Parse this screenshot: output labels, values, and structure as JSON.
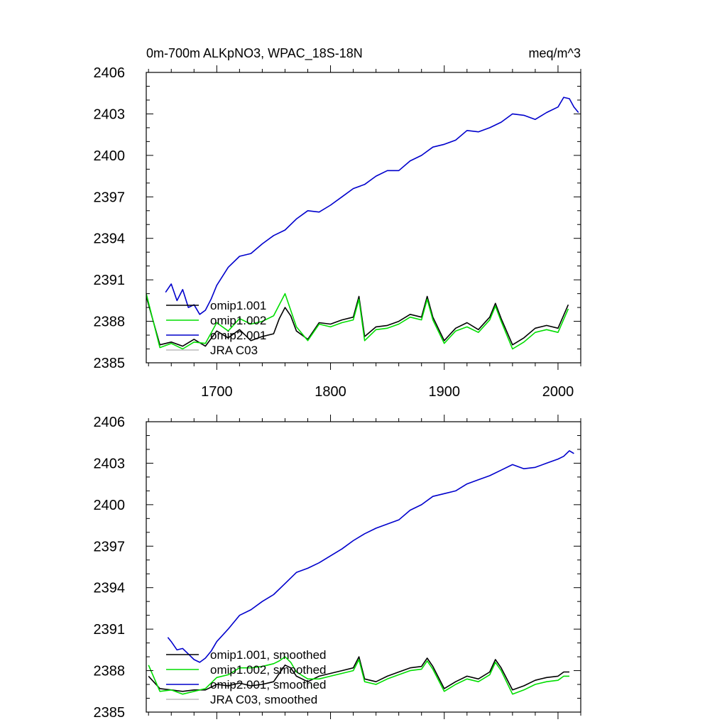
{
  "chart_data": [
    {
      "type": "line",
      "title": "0m-700m ALKpNO3, WPAC_18S-18N",
      "units": "meq/m^3",
      "xlim": [
        1638,
        2020
      ],
      "ylim": [
        2385,
        2406
      ],
      "x_ticks": [
        "1700",
        "1800",
        "1900",
        "2000"
      ],
      "y_ticks": [
        "2385",
        "2388",
        "2391",
        "2394",
        "2397",
        "2400",
        "2403",
        "2406"
      ],
      "legend_position": "lower-left",
      "series": [
        {
          "name": "omip1.001",
          "color": "#000000",
          "x": [
            1638,
            1650,
            1660,
            1670,
            1680,
            1690,
            1700,
            1710,
            1720,
            1730,
            1740,
            1750,
            1755,
            1760,
            1765,
            1770,
            1780,
            1790,
            1800,
            1810,
            1820,
            1825,
            1830,
            1840,
            1850,
            1860,
            1870,
            1880,
            1885,
            1890,
            1900,
            1910,
            1920,
            1930,
            1940,
            1945,
            1950,
            1960,
            1970,
            1980,
            1990,
            2000,
            2009
          ],
          "y": [
            2389.8,
            2386.3,
            2386.5,
            2386.2,
            2386.7,
            2386.2,
            2387.3,
            2386.8,
            2387.4,
            2386.6,
            2386.9,
            2387.1,
            2388.2,
            2389.0,
            2388.4,
            2387.3,
            2386.7,
            2387.9,
            2387.8,
            2388.1,
            2388.3,
            2389.8,
            2386.9,
            2387.6,
            2387.7,
            2388.0,
            2388.5,
            2388.3,
            2389.8,
            2388.3,
            2386.6,
            2387.5,
            2387.9,
            2387.4,
            2388.3,
            2389.3,
            2388.2,
            2386.3,
            2386.8,
            2387.5,
            2387.7,
            2387.5,
            2389.2
          ]
        },
        {
          "name": "omip1.002",
          "color": "#00dd00",
          "x": [
            1638,
            1650,
            1660,
            1670,
            1680,
            1690,
            1700,
            1710,
            1720,
            1730,
            1740,
            1750,
            1755,
            1760,
            1765,
            1770,
            1780,
            1790,
            1800,
            1810,
            1820,
            1825,
            1830,
            1840,
            1850,
            1860,
            1870,
            1880,
            1885,
            1890,
            1900,
            1910,
            1920,
            1930,
            1940,
            1945,
            1950,
            1960,
            1970,
            1980,
            1990,
            2000,
            2009
          ],
          "y": [
            2390.0,
            2386.1,
            2386.4,
            2386.0,
            2386.5,
            2386.4,
            2387.9,
            2387.3,
            2388.2,
            2387.8,
            2388.0,
            2388.4,
            2389.2,
            2390.0,
            2388.8,
            2387.6,
            2386.6,
            2387.8,
            2387.6,
            2387.9,
            2388.1,
            2389.6,
            2386.6,
            2387.4,
            2387.5,
            2387.8,
            2388.3,
            2388.1,
            2389.6,
            2388.1,
            2386.4,
            2387.3,
            2387.6,
            2387.2,
            2388.1,
            2389.1,
            2388.0,
            2386.0,
            2386.5,
            2387.2,
            2387.4,
            2387.2,
            2388.9
          ]
        },
        {
          "name": "omip2.001",
          "color": "#0000cc",
          "x": [
            1655,
            1660,
            1665,
            1670,
            1675,
            1680,
            1685,
            1690,
            1695,
            1700,
            1710,
            1720,
            1730,
            1740,
            1750,
            1760,
            1770,
            1780,
            1790,
            1800,
            1810,
            1820,
            1830,
            1840,
            1850,
            1860,
            1870,
            1880,
            1890,
            1900,
            1910,
            1920,
            1930,
            1940,
            1950,
            1960,
            1970,
            1980,
            1990,
            2000,
            2005,
            2010,
            2014,
            2018
          ],
          "y": [
            2390.1,
            2390.7,
            2389.5,
            2390.3,
            2389.0,
            2389.2,
            2388.5,
            2388.8,
            2389.6,
            2390.6,
            2391.9,
            2392.7,
            2392.9,
            2393.6,
            2394.2,
            2394.6,
            2395.4,
            2396.0,
            2395.9,
            2396.4,
            2397.0,
            2397.6,
            2397.9,
            2398.5,
            2398.9,
            2398.9,
            2399.6,
            2400.0,
            2400.6,
            2400.8,
            2401.1,
            2401.8,
            2401.7,
            2402.0,
            2402.4,
            2403.0,
            2402.9,
            2402.6,
            2403.1,
            2403.5,
            2404.2,
            2404.1,
            2403.5,
            2403.1
          ]
        },
        {
          "name": "JRA C03",
          "color": "#bbbbbb",
          "x": [],
          "y": []
        }
      ]
    },
    {
      "type": "line",
      "title": "",
      "xlim": [
        1638,
        2020
      ],
      "ylim": [
        2385,
        2406
      ],
      "y_ticks": [
        "2385",
        "2388",
        "2391",
        "2394",
        "2397",
        "2400",
        "2403",
        "2406"
      ],
      "legend_position": "lower-left",
      "series": [
        {
          "name": "omip1.001, smoothed",
          "color": "#000000",
          "x": [
            1640,
            1650,
            1660,
            1670,
            1680,
            1690,
            1700,
            1710,
            1720,
            1730,
            1740,
            1750,
            1755,
            1760,
            1765,
            1770,
            1780,
            1790,
            1800,
            1810,
            1820,
            1825,
            1830,
            1840,
            1850,
            1860,
            1870,
            1880,
            1885,
            1890,
            1900,
            1910,
            1920,
            1930,
            1940,
            1945,
            1950,
            1960,
            1970,
            1980,
            1990,
            2000,
            2005,
            2010
          ],
          "y": [
            2387.6,
            2386.7,
            2386.6,
            2386.5,
            2386.6,
            2386.6,
            2387.0,
            2386.9,
            2387.1,
            2386.9,
            2387.0,
            2387.2,
            2387.8,
            2388.4,
            2388.2,
            2387.6,
            2387.2,
            2387.6,
            2387.8,
            2388.0,
            2388.2,
            2389.0,
            2387.4,
            2387.2,
            2387.6,
            2387.9,
            2388.2,
            2388.3,
            2388.9,
            2388.3,
            2386.7,
            2387.2,
            2387.6,
            2387.4,
            2387.9,
            2388.8,
            2388.2,
            2386.6,
            2386.9,
            2387.3,
            2387.5,
            2387.6,
            2387.9,
            2387.9
          ]
        },
        {
          "name": "omip1.002, smoothed",
          "color": "#00dd00",
          "x": [
            1640,
            1650,
            1660,
            1670,
            1680,
            1690,
            1700,
            1710,
            1720,
            1730,
            1740,
            1750,
            1755,
            1760,
            1765,
            1770,
            1780,
            1790,
            1800,
            1810,
            1820,
            1825,
            1830,
            1840,
            1850,
            1860,
            1870,
            1880,
            1885,
            1890,
            1900,
            1910,
            1920,
            1930,
            1940,
            1945,
            1950,
            1960,
            1970,
            1980,
            1990,
            2000,
            2005,
            2010
          ],
          "y": [
            2388.4,
            2386.5,
            2386.6,
            2386.3,
            2386.5,
            2386.7,
            2387.5,
            2387.7,
            2388.2,
            2388.2,
            2388.3,
            2388.5,
            2388.7,
            2389.0,
            2388.6,
            2387.9,
            2387.4,
            2387.4,
            2387.6,
            2387.8,
            2388.0,
            2388.8,
            2387.2,
            2387.0,
            2387.4,
            2387.7,
            2388.0,
            2388.1,
            2388.7,
            2388.1,
            2386.5,
            2387.0,
            2387.4,
            2387.2,
            2387.7,
            2388.6,
            2388.0,
            2386.3,
            2386.6,
            2387.0,
            2387.2,
            2387.3,
            2387.6,
            2387.6
          ]
        },
        {
          "name": "omip2.001, smoothed",
          "color": "#0000cc",
          "x": [
            1657,
            1660,
            1665,
            1670,
            1675,
            1680,
            1685,
            1690,
            1695,
            1700,
            1710,
            1720,
            1730,
            1740,
            1750,
            1760,
            1770,
            1780,
            1790,
            1800,
            1810,
            1820,
            1830,
            1840,
            1850,
            1860,
            1870,
            1880,
            1890,
            1900,
            1910,
            1920,
            1930,
            1940,
            1950,
            1960,
            1970,
            1980,
            1990,
            2000,
            2005,
            2010,
            2014
          ],
          "y": [
            2390.4,
            2390.1,
            2389.5,
            2389.6,
            2389.2,
            2388.8,
            2388.6,
            2388.9,
            2389.4,
            2390.1,
            2391.0,
            2392.0,
            2392.4,
            2393.0,
            2393.5,
            2394.3,
            2395.1,
            2395.4,
            2395.8,
            2396.3,
            2396.8,
            2397.4,
            2397.9,
            2398.3,
            2398.6,
            2398.9,
            2399.6,
            2400.0,
            2400.6,
            2400.8,
            2401.0,
            2401.5,
            2401.8,
            2402.1,
            2402.5,
            2402.9,
            2402.6,
            2402.7,
            2403.0,
            2403.3,
            2403.5,
            2403.9,
            2403.7
          ]
        },
        {
          "name": "JRA C03, smoothed",
          "color": "#bbbbbb",
          "x": [],
          "y": []
        }
      ]
    }
  ]
}
